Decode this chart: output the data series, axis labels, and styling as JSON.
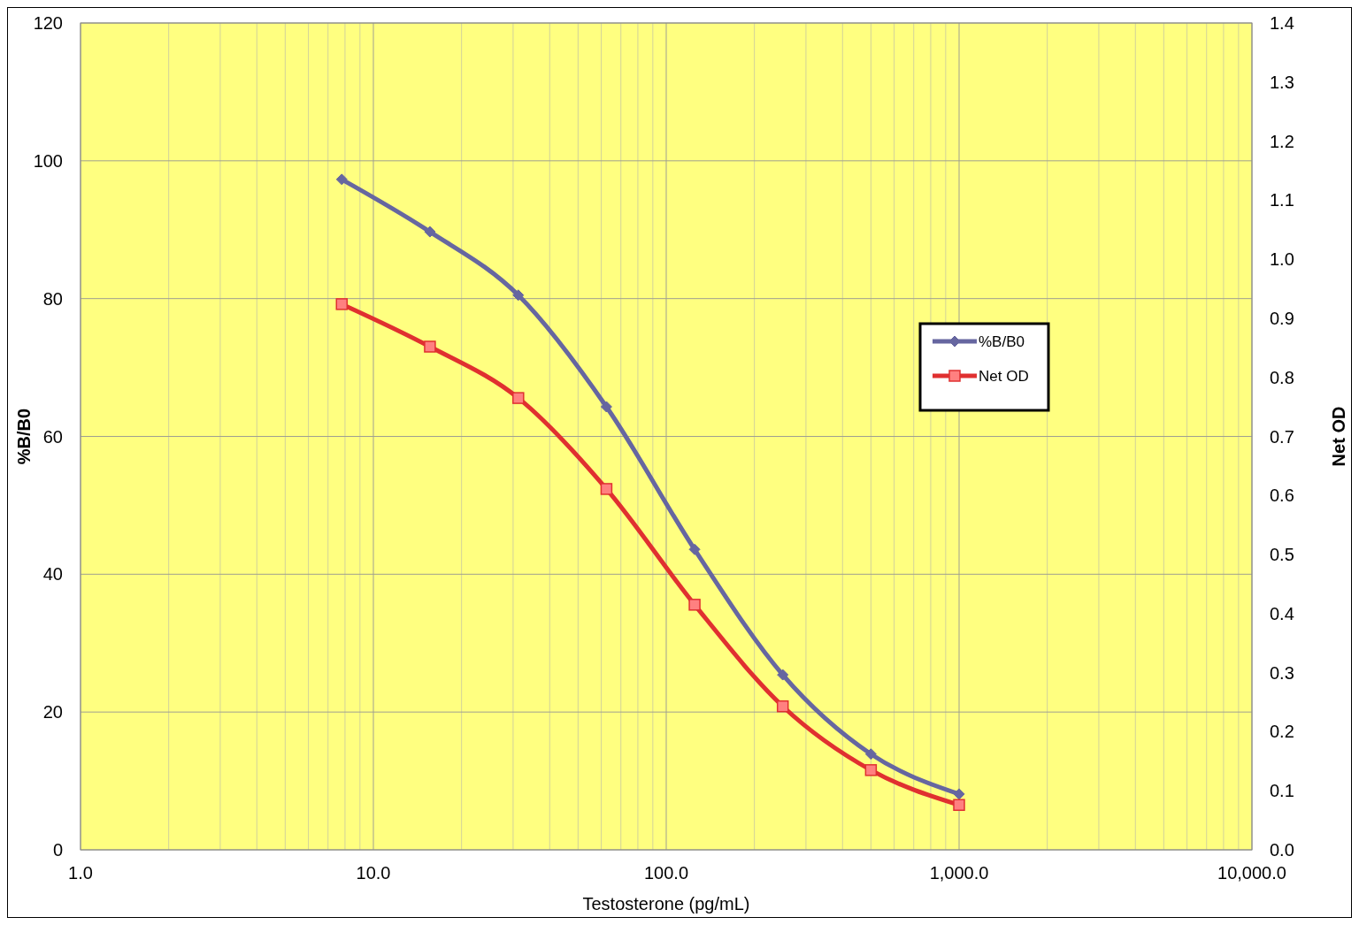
{
  "chart_data": {
    "type": "line",
    "xlabel": "Testosterone (pg/mL)",
    "ylabel": "%B/B0",
    "y2label": "Net OD",
    "log": "x",
    "grid": true,
    "legend": "right",
    "xlim": [
      1,
      10000
    ],
    "xticks": [
      {
        "value": 1,
        "label": "1.0"
      },
      {
        "value": 10,
        "label": "10.0"
      },
      {
        "value": 100,
        "label": "100.0"
      },
      {
        "value": 1000,
        "label": "1,000.0"
      },
      {
        "value": 10000,
        "label": "10,000.0"
      }
    ],
    "ylim": [
      0,
      120
    ],
    "yticks": [
      0,
      20,
      40,
      60,
      80,
      100,
      120
    ],
    "y2lim": [
      0,
      1.4
    ],
    "y2ticks": [
      {
        "value": 0,
        "label": "0.0"
      },
      {
        "value": 0.1,
        "label": "0.1"
      },
      {
        "value": 0.2,
        "label": "0.2"
      },
      {
        "value": 0.3,
        "label": "0.3"
      },
      {
        "value": 0.4,
        "label": "0.4"
      },
      {
        "value": 0.5,
        "label": "0.5"
      },
      {
        "value": 0.6,
        "label": "0.6"
      },
      {
        "value": 0.7,
        "label": "0.7"
      },
      {
        "value": 0.8,
        "label": "0.8"
      },
      {
        "value": 0.9,
        "label": "0.9"
      },
      {
        "value": 1,
        "label": "1.0"
      },
      {
        "value": 1.1,
        "label": "1.1"
      },
      {
        "value": 1.2,
        "label": "1.2"
      },
      {
        "value": 1.3,
        "label": "1.3"
      },
      {
        "value": 1.4,
        "label": "1.4"
      }
    ],
    "x": [
      7.8,
      15.6,
      31.25,
      62.5,
      125,
      250,
      500,
      1000
    ],
    "series": [
      {
        "name": "%B/B0",
        "color": "#6666a0",
        "marker": "diamond",
        "values": [
          97.3,
          89.7,
          80.5,
          64.3,
          43.6,
          25.4,
          13.9,
          8.1
        ]
      },
      {
        "name": "Net OD",
        "color": "#e03030",
        "marker": "square",
        "axis": "y2",
        "values": [
          0.924,
          0.852,
          0.765,
          0.611,
          0.415,
          0.243,
          0.135,
          0.076
        ]
      }
    ]
  }
}
